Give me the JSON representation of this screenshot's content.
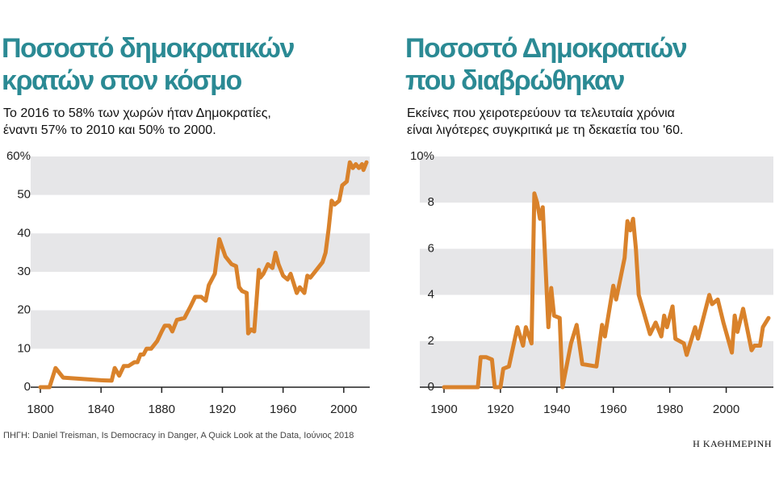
{
  "chart_data": [
    {
      "type": "line",
      "title": [
        "Ποσοστό δημοκρατικών",
        "κρατών στον κόσμο"
      ],
      "subtitle": [
        "Το 2016 το 58% των χωρών ήταν Δημοκρατίες,",
        "έναντι 57% το 2010 και 50% το 2000."
      ],
      "x": [
        1800,
        1806,
        1810,
        1815,
        1840,
        1847,
        1849,
        1852,
        1855,
        1858,
        1862,
        1864,
        1866,
        1868,
        1870,
        1873,
        1877,
        1880,
        1882,
        1885,
        1887,
        1890,
        1895,
        1899,
        1902,
        1906,
        1909,
        1911,
        1915,
        1918,
        1922,
        1926,
        1929,
        1931,
        1933,
        1936,
        1937,
        1939,
        1941,
        1944,
        1945,
        1947,
        1950,
        1953,
        1955,
        1957,
        1960,
        1963,
        1965,
        1967,
        1969,
        1971,
        1974,
        1976,
        1978,
        1980,
        1983,
        1986,
        1988,
        1990,
        1992,
        1994,
        1997,
        1999,
        2002,
        2004,
        2006,
        2008,
        2010,
        2012,
        2013,
        2015
      ],
      "series": [
        {
          "color": "#d9822b",
          "values": [
            0,
            0,
            5,
            2.5,
            1.8,
            1.7,
            5,
            3,
            5.5,
            5.5,
            6.5,
            6.5,
            8.5,
            8.5,
            10,
            10,
            12,
            14.5,
            16,
            16,
            14.5,
            17.5,
            18,
            21,
            23.5,
            23.5,
            22.5,
            26.5,
            29.5,
            38.5,
            34,
            32,
            31.5,
            26,
            25,
            24.5,
            14,
            15,
            14.5,
            30.5,
            28.5,
            29.5,
            32,
            31,
            35,
            32,
            29,
            28,
            29.5,
            27,
            24.5,
            26,
            24.5,
            29,
            28.5,
            29.5,
            31,
            32.5,
            35,
            41,
            48.5,
            47.5,
            48.5,
            52.5,
            53.5,
            58.5,
            57,
            58,
            57,
            58,
            56.5,
            58.5
          ]
        }
      ],
      "xlim": [
        1800,
        2015
      ],
      "xticks": [
        1800,
        1840,
        1880,
        1920,
        1960,
        2000
      ],
      "ylim": [
        0,
        60
      ],
      "yticks": [
        0,
        10,
        20,
        30,
        40,
        {
          "value": 60,
          "label": "60%"
        },
        50
      ],
      "grid": "bands"
    },
    {
      "type": "line",
      "title": [
        "Ποσοστό Δημοκρατιών",
        "που διαβρώθηκαν"
      ],
      "subtitle": [
        "Εκείνες που χειροτερεύουν τα τελευταία χρόνια",
        "είναι λιγότερες συγκριτικά με τη δεκαετία του '60."
      ],
      "x": [
        1900,
        1912,
        1913,
        1915,
        1917,
        1918,
        1920,
        1921,
        1923,
        1926,
        1928,
        1929,
        1931,
        1932,
        1933,
        1934,
        1935,
        1937,
        1938,
        1939,
        1941,
        1942,
        1945,
        1947,
        1949,
        1954,
        1956,
        1957,
        1960,
        1961,
        1964,
        1965,
        1966,
        1967,
        1968,
        1969,
        1973,
        1975,
        1977,
        1978,
        1979,
        1981,
        1982,
        1985,
        1986,
        1989,
        1990,
        1994,
        1995,
        1997,
        1999,
        2002,
        2003,
        2004,
        2006,
        2009,
        2010,
        2012,
        2013,
        2015
      ],
      "series": [
        {
          "color": "#d9822b",
          "values": [
            0,
            0,
            1.3,
            1.3,
            1.2,
            0,
            0,
            0.8,
            0.9,
            2.6,
            1.8,
            2.6,
            1.9,
            8.4,
            8,
            7.3,
            7.8,
            2.6,
            4.3,
            3.1,
            3,
            0,
            1.9,
            2.7,
            1,
            0.9,
            2.7,
            2.2,
            4.4,
            3.8,
            5.6,
            7.2,
            6.8,
            7.3,
            6,
            4,
            2.3,
            2.8,
            2.2,
            3.1,
            2.6,
            3.5,
            2.1,
            1.9,
            1.4,
            2.6,
            2.1,
            4,
            3.6,
            3.8,
            2.8,
            1.5,
            3.1,
            2.4,
            3.4,
            1.6,
            1.8,
            1.8,
            2.6,
            3
          ]
        }
      ],
      "xlim": [
        1900,
        2015
      ],
      "xticks": [
        1900,
        1920,
        1940,
        1960,
        1980,
        2000
      ],
      "ylim": [
        0,
        10
      ],
      "yticks": [
        0,
        2,
        4,
        6,
        8,
        {
          "value": 10,
          "label": "10%"
        }
      ],
      "grid": "bands"
    }
  ],
  "source": "ΠΗΓΗ: Daniel Treisman, Is Democracy in Danger, A Quick Look at the Data, Ιούνιος 2018",
  "publisher": "Η ΚΑΘΗΜΕΡΙΝΗ"
}
